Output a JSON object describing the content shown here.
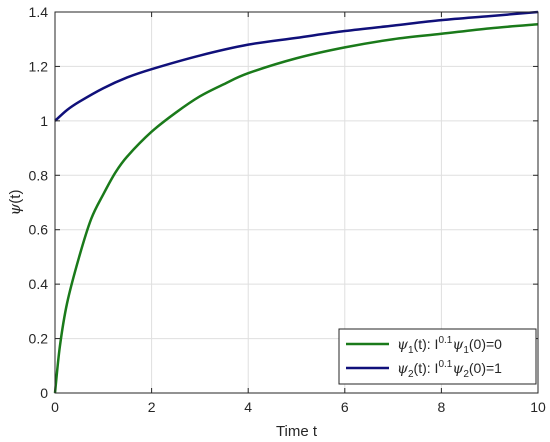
{
  "chart_data": {
    "type": "line",
    "xlabel": "Time t",
    "ylabel": {
      "symbol": "ψ",
      "rest": "(t)"
    },
    "xlim": [
      0,
      10
    ],
    "ylim": [
      0,
      1.4
    ],
    "xticks": [
      0,
      2,
      4,
      6,
      8,
      10
    ],
    "yticks": [
      0,
      0.2,
      0.4,
      0.6,
      0.8,
      1,
      1.2,
      1.4
    ],
    "xtick_labels": [
      "0",
      "2",
      "4",
      "6",
      "8",
      "10"
    ],
    "ytick_labels": [
      "0",
      "0.2",
      "0.4",
      "0.6",
      "0.8",
      "1",
      "1.2",
      "1.4"
    ],
    "grid": true,
    "legend_position": "bottom-right",
    "series": [
      {
        "color": "#1a7a1a",
        "legend": {
          "sym": "ψ",
          "sub": "1",
          "mid": "(t): I",
          "sup": "0.1",
          "sym2": "ψ",
          "sub2": "1",
          "tail": "(0)=0"
        },
        "x": [
          0,
          0.1,
          0.25,
          0.5,
          0.75,
          1,
          1.25,
          1.5,
          2,
          2.5,
          3,
          3.5,
          4,
          5,
          6,
          7,
          8,
          9,
          10
        ],
        "y": [
          0,
          0.17,
          0.33,
          0.5,
          0.64,
          0.73,
          0.81,
          0.87,
          0.96,
          1.03,
          1.09,
          1.135,
          1.175,
          1.23,
          1.27,
          1.3,
          1.32,
          1.34,
          1.355
        ]
      },
      {
        "color": "#10107a",
        "legend": {
          "sym": "ψ",
          "sub": "2",
          "mid": "(t): I",
          "sup": "0.1",
          "sym2": "ψ",
          "sub2": "2",
          "tail": "(0)=1"
        },
        "x": [
          0,
          0.25,
          0.5,
          1,
          1.5,
          2,
          3,
          4,
          5,
          6,
          7,
          8,
          9,
          10
        ],
        "y": [
          1.0,
          1.04,
          1.07,
          1.12,
          1.16,
          1.19,
          1.24,
          1.28,
          1.305,
          1.33,
          1.35,
          1.37,
          1.385,
          1.4
        ]
      }
    ]
  }
}
